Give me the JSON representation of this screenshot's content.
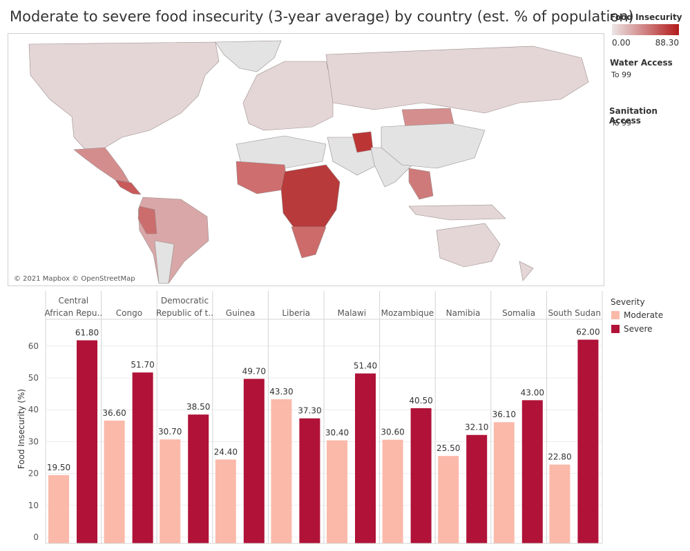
{
  "title": "Moderate to severe food insecurity (3-year average) by country (est. % of population)",
  "map": {
    "credit": "© 2021 Mapbox © OpenStreetMap",
    "no_data_color": "#e3e3e3",
    "low_color": "#e4d6d6",
    "high_color": "#b31b1b"
  },
  "legend_food": {
    "title": "Food Insecurity",
    "min_label": "0.00",
    "max_label": "88.30",
    "min_color": "#ece5e5",
    "max_color": "#b31b1b"
  },
  "filters": {
    "water": {
      "title": "Water Access",
      "value": "To 99"
    },
    "sanitation": {
      "title": "Sanitation Access",
      "value": "To 99"
    }
  },
  "severity_legend": {
    "title": "Severity",
    "items": [
      {
        "label": "Moderate",
        "color": "#fbb9aa"
      },
      {
        "label": "Severe",
        "color": "#b01238"
      }
    ]
  },
  "chart_data": {
    "type": "bar",
    "ylabel": "Food Insecurity (%)",
    "ylim": [
      0,
      65
    ],
    "yticks": [
      "0",
      "10",
      "20",
      "30",
      "40",
      "50",
      "60"
    ],
    "ytick_values": [
      0,
      10,
      20,
      30,
      40,
      50,
      60
    ],
    "grid": true,
    "categories": [
      [
        "Central",
        "African Repu.."
      ],
      [
        "Congo"
      ],
      [
        "Democratic",
        "Republic of t.."
      ],
      [
        "Guinea"
      ],
      [
        "Liberia"
      ],
      [
        "Malawi"
      ],
      [
        "Mozambique"
      ],
      [
        "Namibia"
      ],
      [
        "Somalia"
      ],
      [
        "South Sudan"
      ]
    ],
    "series": [
      {
        "name": "Moderate",
        "color": "#fbb9aa",
        "values": [
          19.5,
          36.6,
          30.7,
          24.4,
          43.3,
          30.4,
          30.6,
          25.5,
          36.1,
          22.8
        ],
        "labels": [
          "19.50",
          "36.60",
          "30.70",
          "24.40",
          "43.30",
          "30.40",
          "30.60",
          "25.50",
          "36.10",
          "22.80"
        ]
      },
      {
        "name": "Severe",
        "color": "#b01238",
        "values": [
          61.8,
          51.7,
          38.5,
          49.7,
          37.3,
          51.4,
          40.5,
          32.1,
          43.0,
          62.0
        ],
        "labels": [
          "61.80",
          "51.70",
          "38.50",
          "49.70",
          "37.30",
          "51.40",
          "40.50",
          "32.10",
          "43.00",
          "62.00"
        ]
      }
    ]
  }
}
